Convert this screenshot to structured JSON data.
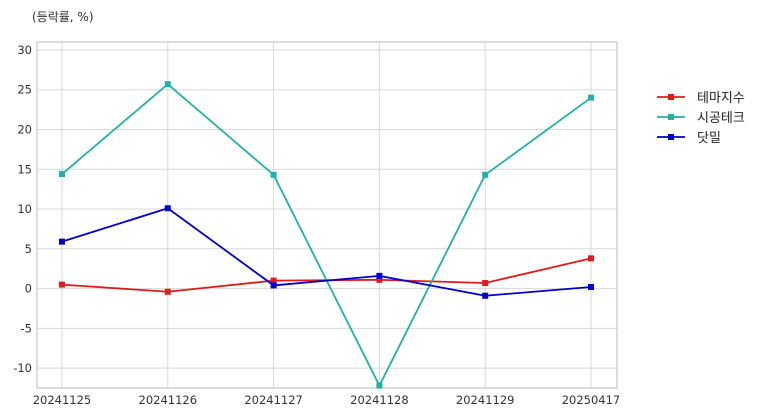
{
  "chart_data": {
    "type": "line",
    "unit_label": "(등락률, %)",
    "categories": [
      "20241125",
      "20241126",
      "20241127",
      "20241128",
      "20241129",
      "20250417"
    ],
    "ylim": [
      -12.5,
      31
    ],
    "yticks": [
      30,
      25,
      20,
      15,
      10,
      5,
      0,
      -5,
      -10
    ],
    "grid": true,
    "legend_position": "right",
    "series": [
      {
        "name": "테마지수",
        "color": "#e31a1c",
        "values": [
          0.5,
          -0.4,
          1.0,
          1.1,
          0.7,
          3.8
        ]
      },
      {
        "name": "시공테크",
        "color": "#20b2aa",
        "values": [
          14.4,
          25.7,
          14.3,
          -12.2,
          14.3,
          24.0
        ]
      },
      {
        "name": "닷밀",
        "color": "#0000cd",
        "values": [
          5.9,
          10.1,
          0.4,
          1.6,
          -0.9,
          0.2
        ]
      }
    ]
  }
}
